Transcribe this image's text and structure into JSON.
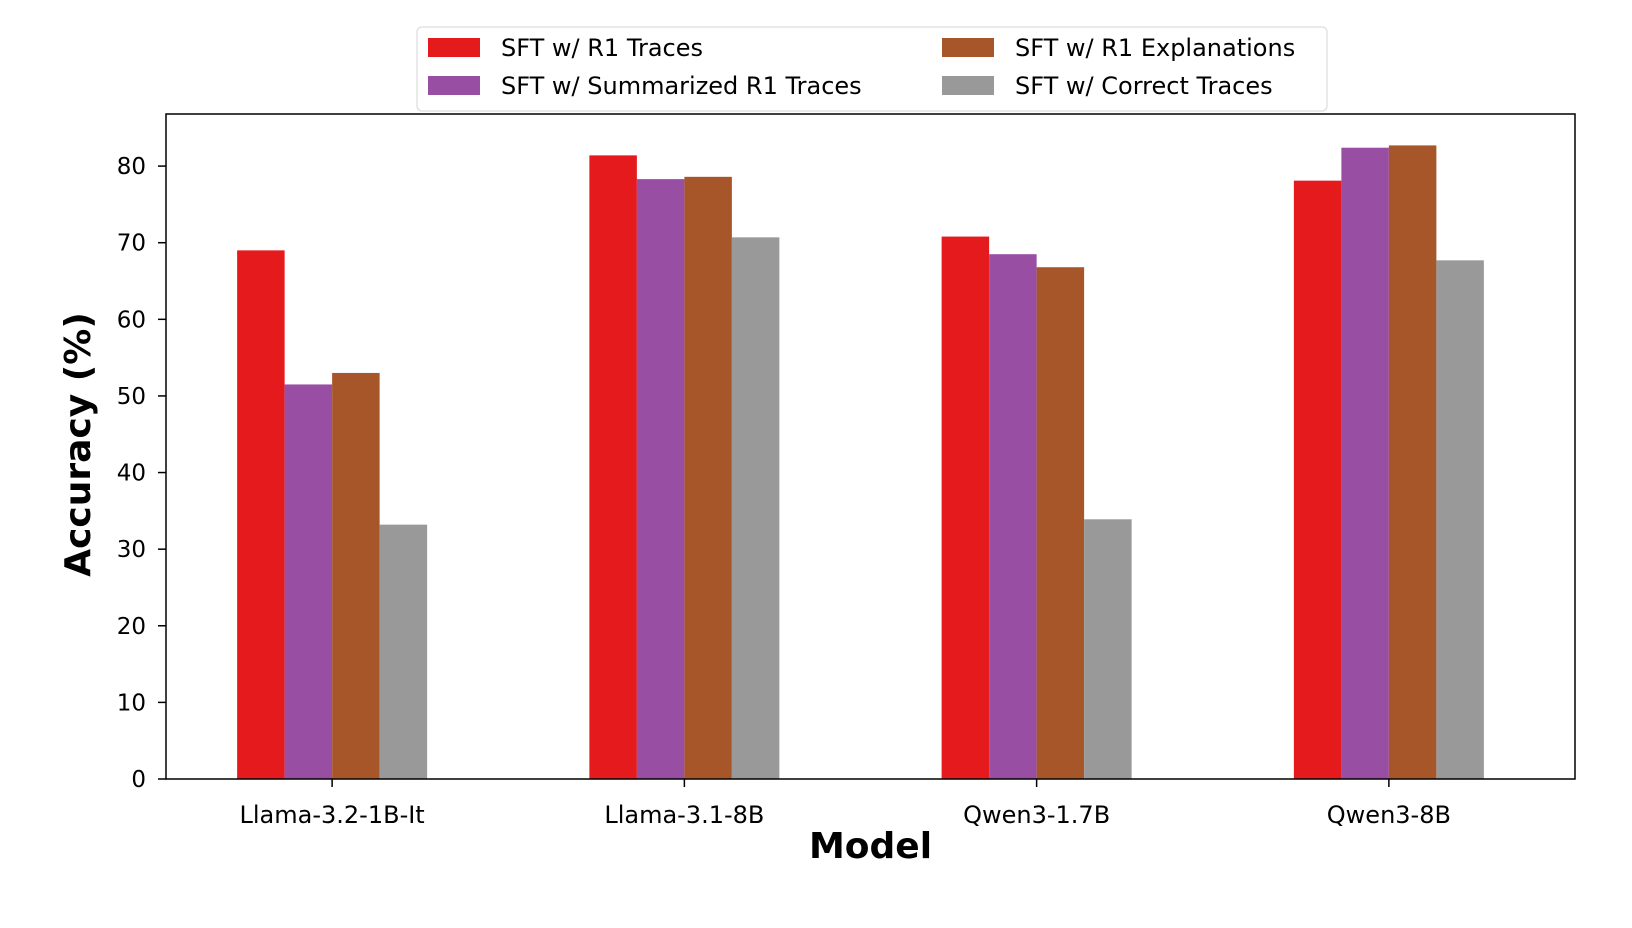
{
  "chart_data": {
    "type": "bar",
    "title": "",
    "xlabel": "Model",
    "ylabel": "Accuracy (%)",
    "categories": [
      "Llama-3.2-1B-It",
      "Llama-3.1-8B",
      "Qwen3-1.7B",
      "Qwen3-8B"
    ],
    "series": [
      {
        "name": "SFT w/ R1 Traces",
        "color": "#e41a1c",
        "values": [
          69.0,
          81.4,
          70.8,
          78.1
        ]
      },
      {
        "name": "SFT w/ Summarized R1 Traces",
        "color": "#984ea3",
        "values": [
          51.5,
          78.3,
          68.5,
          82.4
        ]
      },
      {
        "name": "SFT w/ R1 Explanations",
        "color": "#a65628",
        "values": [
          53.0,
          78.6,
          66.8,
          82.7
        ]
      },
      {
        "name": "SFT w/ Correct Traces",
        "color": "#999999",
        "values": [
          33.2,
          70.7,
          33.9,
          67.7
        ]
      }
    ],
    "ylim": [
      0,
      86.8
    ],
    "yticks": [
      0,
      10,
      20,
      30,
      40,
      50,
      60,
      70,
      80
    ],
    "grid": false,
    "legend": {
      "placement": "top-center",
      "columns": 2
    }
  }
}
